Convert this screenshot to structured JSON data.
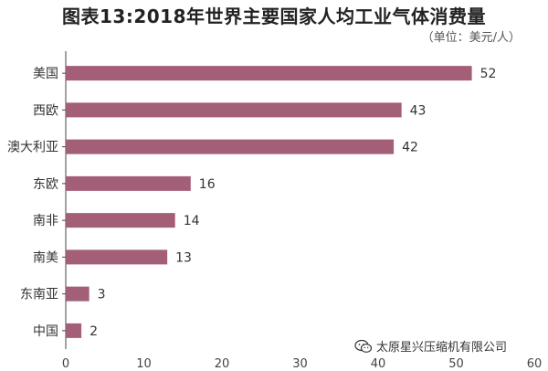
{
  "title": "图表13:2018年世界主要国家人均工业气体消费量",
  "unit_label": "（单位：美元/人）",
  "watermark_text": "太原星兴压缩机有限公司",
  "chart_data": {
    "type": "bar",
    "orientation": "horizontal",
    "categories": [
      "美国",
      "西欧",
      "澳大利亚",
      "东欧",
      "南非",
      "南美",
      "东南亚",
      "中国"
    ],
    "values": [
      52,
      43,
      42,
      16,
      14,
      13,
      3,
      2
    ],
    "xlim": [
      0,
      60
    ],
    "xticks": [
      0,
      10,
      20,
      30,
      40,
      50,
      60
    ],
    "bar_color": "#a45f78",
    "grid": false
  }
}
